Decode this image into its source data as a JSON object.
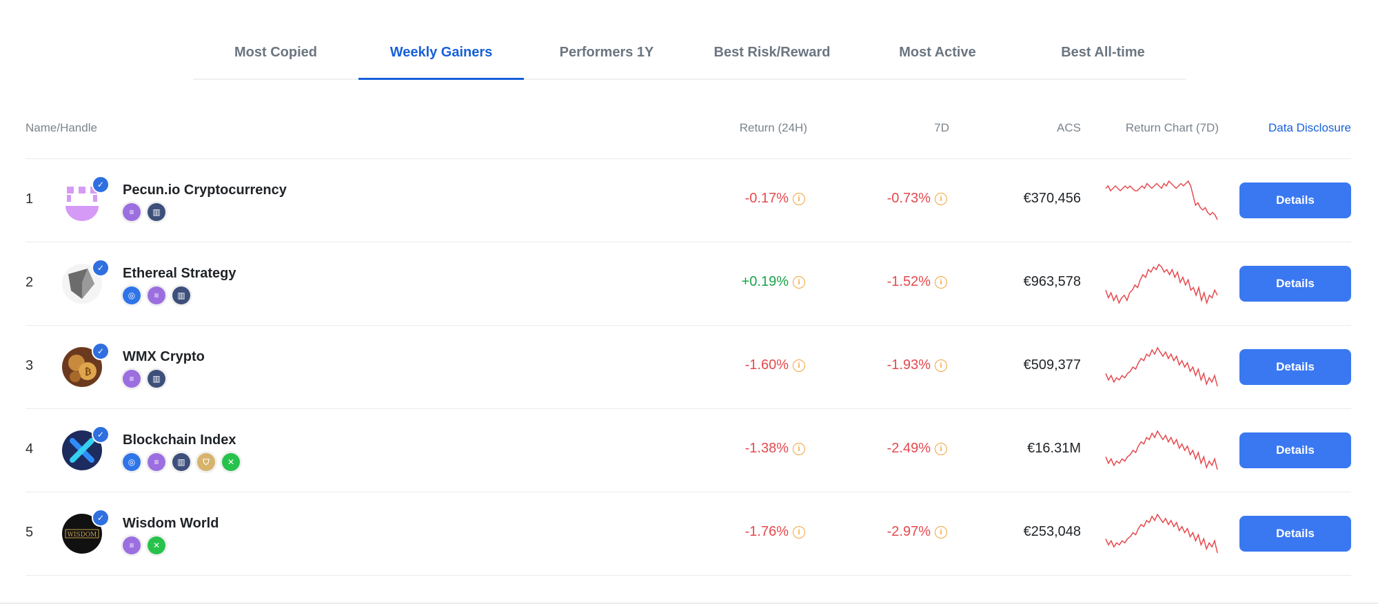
{
  "tabs": [
    {
      "label": "Most Copied",
      "active": false
    },
    {
      "label": "Weekly Gainers",
      "active": true
    },
    {
      "label": "Performers 1Y",
      "active": false
    },
    {
      "label": "Best Risk/Reward",
      "active": false
    },
    {
      "label": "Most Active",
      "active": false
    },
    {
      "label": "Best All-time",
      "active": false
    }
  ],
  "header": {
    "name": "Name/Handle",
    "return24": "Return (24H)",
    "d7": "7D",
    "acs": "ACS",
    "chart": "Return Chart (7D)",
    "disclosure": "Data Disclosure"
  },
  "rows": [
    {
      "rank": "1",
      "name": "Pecun.io Cryptocurrency",
      "r24": "-0.17%",
      "r24_sign": "neg",
      "d7": "-0.73%",
      "acs": "€370,456",
      "button": "Details",
      "badges": [
        "purple",
        "navy"
      ],
      "spark": [
        5,
        6,
        4,
        5,
        6,
        5,
        4,
        5,
        6,
        5,
        6,
        5,
        4,
        4,
        5,
        6,
        5,
        7,
        6,
        5,
        6,
        7,
        6,
        5,
        7,
        6,
        8,
        7,
        6,
        5,
        6,
        7,
        6,
        7,
        8,
        6,
        2,
        -2,
        -1,
        -3,
        -4,
        -3,
        -5,
        -6,
        -5,
        -6,
        -8
      ]
    },
    {
      "rank": "2",
      "name": "Ethereal Strategy",
      "r24": "+0.19%",
      "r24_sign": "pos",
      "d7": "-1.52%",
      "acs": "€963,578",
      "button": "Details",
      "badges": [
        "blue",
        "purple",
        "navy"
      ],
      "spark": [
        0,
        -3,
        -1,
        -4,
        -2,
        -5,
        -3,
        -2,
        -4,
        -1,
        0,
        2,
        1,
        4,
        6,
        5,
        8,
        7,
        9,
        8,
        10,
        9,
        7,
        8,
        6,
        8,
        5,
        7,
        3,
        5,
        2,
        4,
        0,
        1,
        -2,
        1,
        -4,
        -1,
        -5,
        -2,
        -3,
        0,
        -2
      ]
    },
    {
      "rank": "3",
      "name": "WMX Crypto",
      "r24": "-1.60%",
      "r24_sign": "neg",
      "d7": "-1.93%",
      "acs": "€509,377",
      "button": "Details",
      "badges": [
        "purple",
        "navy"
      ],
      "spark": [
        0,
        -3,
        -1,
        -4,
        -2,
        -3,
        -1,
        -2,
        0,
        1,
        3,
        2,
        5,
        7,
        6,
        9,
        8,
        11,
        9,
        12,
        10,
        8,
        10,
        7,
        9,
        6,
        8,
        4,
        6,
        3,
        5,
        1,
        3,
        -1,
        2,
        -3,
        0,
        -5,
        -2,
        -4,
        -1,
        -6
      ]
    },
    {
      "rank": "4",
      "name": "Blockchain Index",
      "r24": "-1.38%",
      "r24_sign": "neg",
      "d7": "-2.49%",
      "acs": "€16.31M",
      "button": "Details",
      "badges": [
        "blue",
        "purple",
        "navy",
        "gold",
        "green"
      ],
      "spark": [
        0,
        -3,
        -1,
        -4,
        -2,
        -3,
        -1,
        -2,
        0,
        1,
        3,
        2,
        5,
        7,
        6,
        9,
        8,
        11,
        9,
        12,
        10,
        8,
        10,
        7,
        9,
        6,
        8,
        4,
        6,
        3,
        5,
        1,
        3,
        -1,
        2,
        -3,
        0,
        -5,
        -2,
        -4,
        -1,
        -6
      ]
    },
    {
      "rank": "5",
      "name": "Wisdom World",
      "r24": "-1.76%",
      "r24_sign": "neg",
      "d7": "-2.97%",
      "acs": "€253,048",
      "button": "Details",
      "badges": [
        "purple",
        "green"
      ],
      "spark": [
        0,
        -3,
        -1,
        -4,
        -2,
        -3,
        -1,
        -2,
        0,
        1,
        3,
        2,
        5,
        7,
        6,
        9,
        8,
        11,
        9,
        12,
        10,
        8,
        10,
        7,
        9,
        6,
        8,
        4,
        6,
        3,
        5,
        1,
        3,
        -1,
        2,
        -3,
        0,
        -5,
        -2,
        -4,
        -1,
        -7
      ]
    }
  ],
  "colors": {
    "accent": "#1660d9",
    "button": "#3a78f2",
    "negative": "#e5484d",
    "positive": "#19a34a",
    "spark": "#e5484d"
  }
}
